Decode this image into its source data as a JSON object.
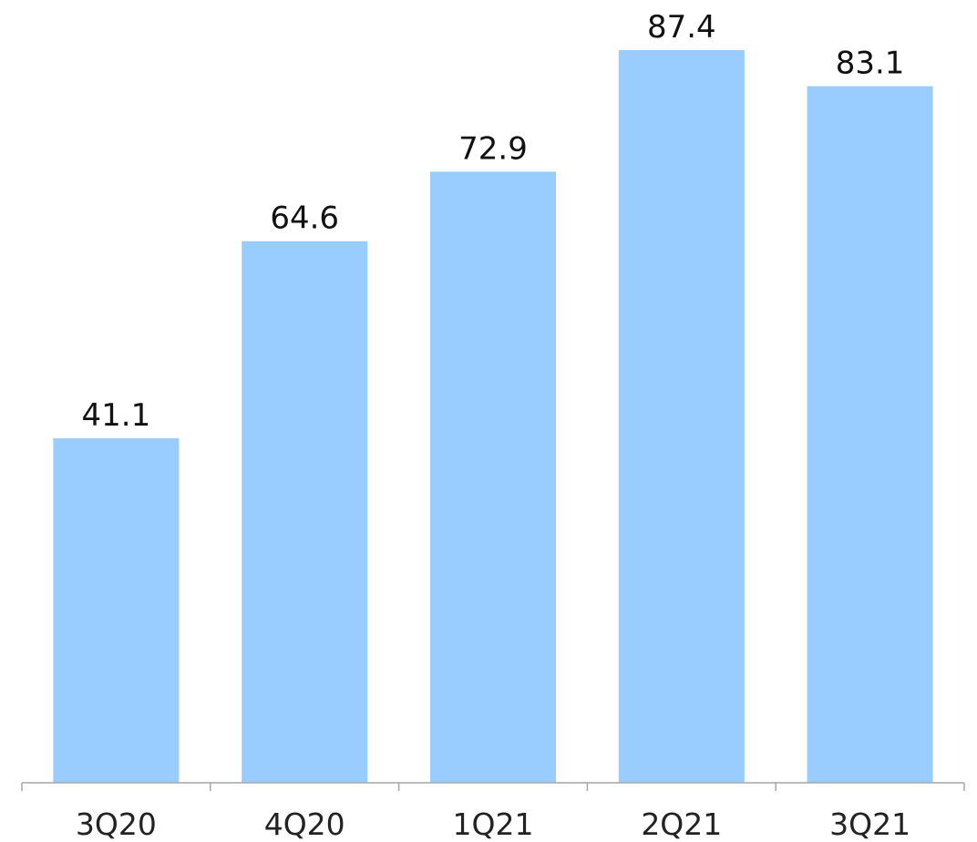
{
  "chart_data": {
    "type": "bar",
    "categories": [
      "3Q20",
      "4Q20",
      "1Q21",
      "2Q21",
      "3Q21"
    ],
    "values": [
      41.1,
      64.6,
      72.9,
      87.4,
      83.1
    ],
    "data_labels": [
      "41.1",
      "64.6",
      "72.9",
      "87.4",
      "83.1"
    ],
    "title": "",
    "xlabel": "",
    "ylabel": "",
    "ylim": [
      0,
      90
    ],
    "grid": false,
    "legend": "none",
    "colors": {
      "bar": "#99ccff",
      "axis": "#a6a6a6",
      "text": "#111111"
    }
  }
}
